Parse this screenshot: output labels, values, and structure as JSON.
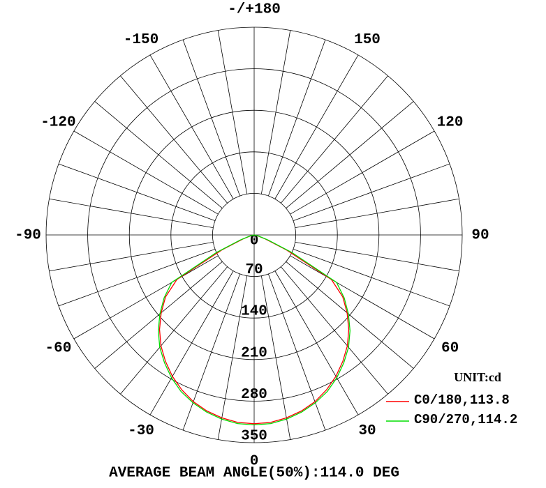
{
  "chart_data": {
    "type": "polar",
    "title": "AVERAGE BEAM ANGLE(50%):114.0 DEG",
    "legend_title": "UNIT:cd",
    "rlim": [
      0,
      350
    ],
    "rticks": [
      0,
      70,
      140,
      210,
      280,
      350
    ],
    "angle_ticks": [
      0,
      30,
      60,
      90,
      120,
      150,
      {
        "value": 180,
        "label": "-/+180"
      },
      -150,
      -120,
      -90,
      -60,
      -30
    ],
    "angles": [
      -90,
      -85,
      -80,
      -75,
      -70,
      -65,
      -60,
      -55,
      -50,
      -45,
      -40,
      -35,
      -30,
      -25,
      -20,
      -15,
      -10,
      -5,
      0,
      5,
      10,
      15,
      20,
      25,
      30,
      35,
      40,
      45,
      50,
      55,
      60,
      65,
      70,
      75,
      80,
      85,
      90
    ],
    "series": [
      {
        "name": "C0/180,113.8",
        "color": "#ff0000",
        "values": [
          0,
          0,
          1,
          6,
          20,
          60,
          150,
          182,
          204,
          225,
          244,
          260,
          275,
          288,
          299,
          307,
          313,
          317,
          318,
          317,
          313,
          307,
          299,
          288,
          275,
          260,
          244,
          225,
          204,
          182,
          150,
          60,
          20,
          6,
          1,
          0,
          0
        ]
      },
      {
        "name": "C90/270,114.2",
        "color": "#00dd00",
        "values": [
          0,
          0,
          2,
          8,
          25,
          70,
          160,
          185,
          207,
          228,
          247,
          263,
          278,
          291,
          301,
          309,
          315,
          319,
          320,
          319,
          315,
          309,
          301,
          291,
          278,
          263,
          247,
          228,
          207,
          185,
          160,
          70,
          25,
          8,
          2,
          0,
          0
        ]
      }
    ]
  }
}
